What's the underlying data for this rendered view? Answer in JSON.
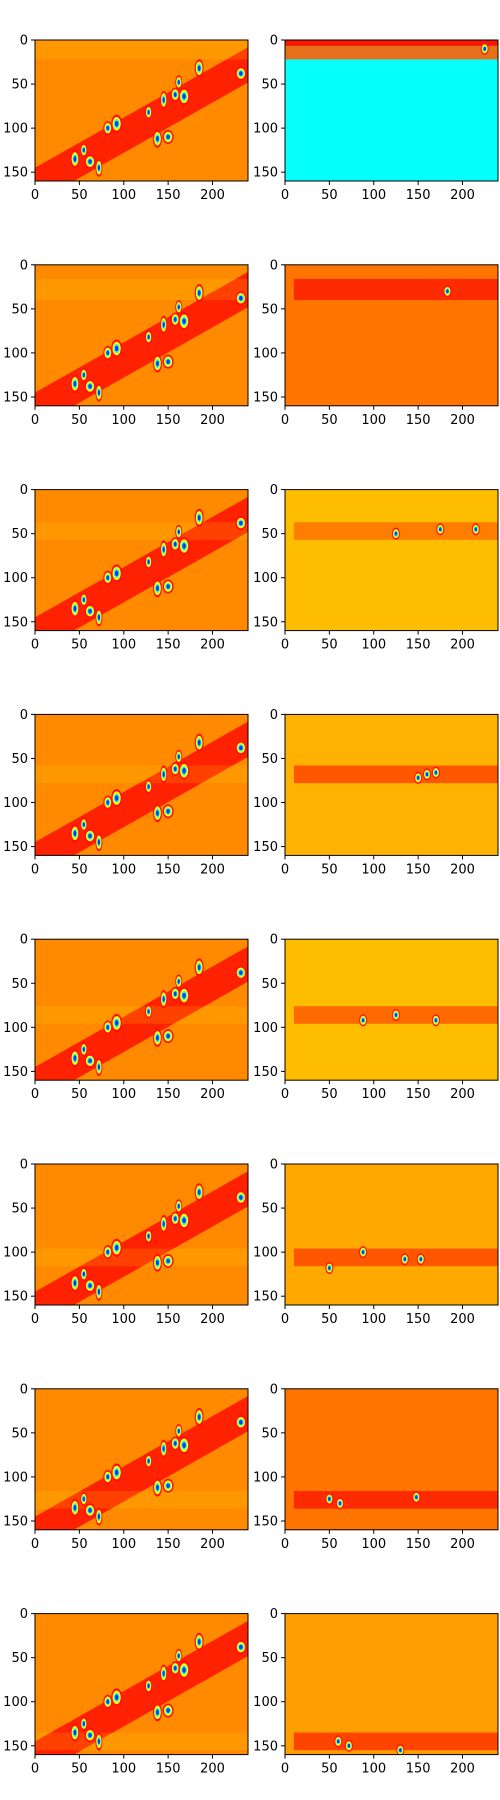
{
  "chart_data": {
    "type": "heatmap",
    "layout": {
      "rows": 8,
      "cols": 2
    },
    "colormap": "jet",
    "xlim": [
      0,
      240
    ],
    "ylim": [
      160,
      0
    ],
    "xticks": [
      0,
      50,
      100,
      150,
      200
    ],
    "yticks": [
      0,
      50,
      100,
      150
    ],
    "xtick_labels": [
      "0",
      "50",
      "100",
      "150",
      "200"
    ],
    "ytick_labels": [
      "0",
      "50",
      "100",
      "150"
    ],
    "left_column": {
      "description": "full feature map repeated in every row",
      "background_value": 0.74,
      "band": {
        "slope": -0.57,
        "intercept": 165,
        "width": 20,
        "value": 0.86
      },
      "blobs": [
        [
          30,
          55,
          125
        ],
        [
          35,
          45,
          135
        ],
        [
          40,
          62,
          138
        ],
        [
          45,
          72,
          145
        ],
        [
          50,
          82,
          100
        ],
        [
          55,
          92,
          95
        ],
        [
          60,
          128,
          82
        ],
        [
          65,
          138,
          112
        ],
        [
          70,
          150,
          110
        ],
        [
          75,
          145,
          68
        ],
        [
          80,
          158,
          62
        ],
        [
          85,
          168,
          64
        ],
        [
          90,
          162,
          48
        ],
        [
          95,
          185,
          32
        ],
        [
          100,
          232,
          38
        ]
      ]
    },
    "right_column": [
      {
        "row": 1,
        "background_value": 0.38,
        "band_center_y": 8,
        "band_halfwidth": 14,
        "band_value": 0.78,
        "spots": [
          [
            225,
            10
          ]
        ]
      },
      {
        "row": 2,
        "background_value": 0.76,
        "band_center_y": 28,
        "band_halfwidth": 12,
        "band_value": 0.84,
        "spots": [
          [
            183,
            30
          ]
        ]
      },
      {
        "row": 3,
        "background_value": 0.69,
        "band_center_y": 47,
        "band_halfwidth": 10,
        "band_value": 0.76,
        "spots": [
          [
            175,
            45
          ],
          [
            215,
            45
          ],
          [
            125,
            50
          ]
        ]
      },
      {
        "row": 4,
        "background_value": 0.7,
        "band_center_y": 68,
        "band_halfwidth": 10,
        "band_value": 0.8,
        "spots": [
          [
            160,
            68
          ],
          [
            170,
            66
          ],
          [
            150,
            72
          ]
        ]
      },
      {
        "row": 5,
        "background_value": 0.69,
        "band_center_y": 86,
        "band_halfwidth": 10,
        "band_value": 0.78,
        "spots": [
          [
            125,
            86
          ],
          [
            88,
            92
          ],
          [
            170,
            92
          ]
        ]
      },
      {
        "row": 6,
        "background_value": 0.71,
        "band_center_y": 106,
        "band_halfwidth": 10,
        "band_value": 0.8,
        "spots": [
          [
            135,
            108
          ],
          [
            153,
            108
          ],
          [
            88,
            100
          ],
          [
            50,
            118
          ]
        ]
      },
      {
        "row": 7,
        "background_value": 0.76,
        "band_center_y": 126,
        "band_halfwidth": 10,
        "band_value": 0.84,
        "spots": [
          [
            50,
            125
          ],
          [
            62,
            130
          ],
          [
            148,
            123
          ]
        ]
      },
      {
        "row": 8,
        "background_value": 0.72,
        "band_center_y": 145,
        "band_halfwidth": 10,
        "band_value": 0.82,
        "spots": [
          [
            60,
            145
          ],
          [
            72,
            150
          ],
          [
            130,
            155
          ]
        ]
      }
    ]
  }
}
